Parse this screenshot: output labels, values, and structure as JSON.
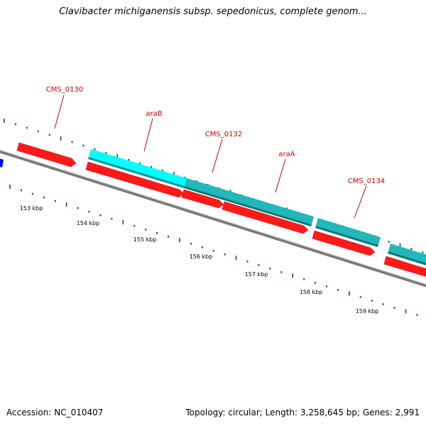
{
  "title": "Clavibacter michiganensis subsp. sepedonicus, complete genom...",
  "footer": {
    "accession": "Accession: NC_010407",
    "stats": "Topology: circular; Length: 3,258,645 bp; Genes: 2,991"
  },
  "colors": {
    "forward_gene": "#ff0000",
    "cds_light": "#00ffff",
    "cds_dark": "#20b8b8",
    "other_gene": "#0000ff",
    "backbone": "#808080",
    "ticks": "#006400",
    "labels": "#cc0000"
  },
  "gene_labels": [
    "CMS_0130",
    "araB",
    "CMS_0132",
    "araA",
    "CMS_0134"
  ],
  "kbp_labels": [
    "153 kbp",
    "154 kbp",
    "155 kbp",
    "156 kbp",
    "157 kbp",
    "158 kbp",
    "159 kbp"
  ]
}
